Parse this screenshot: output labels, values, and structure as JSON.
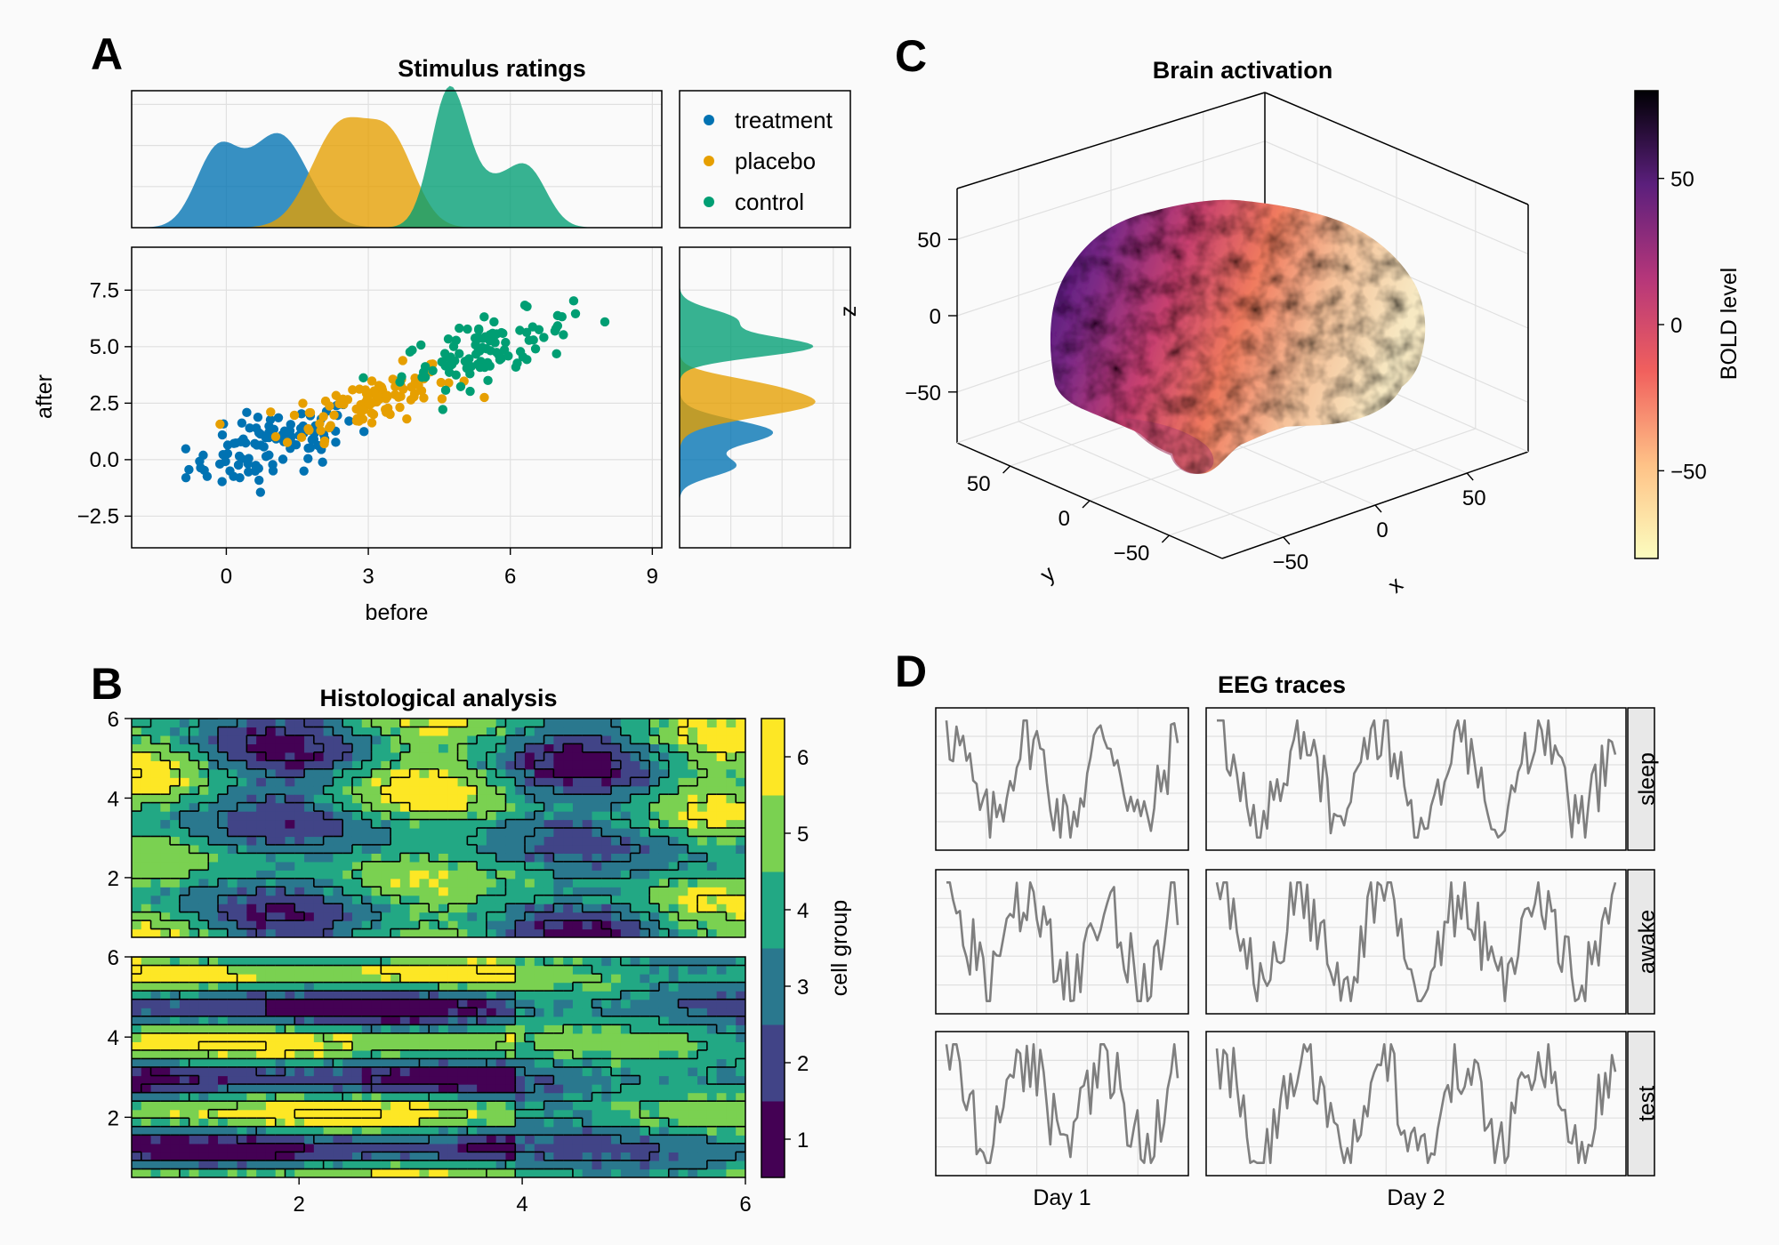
{
  "panel_labels": [
    "A",
    "B",
    "C",
    "D"
  ],
  "colors": {
    "treatment": "#0072b2",
    "placebo": "#e69f00",
    "control": "#009e73",
    "trace": "#7f7f7f"
  },
  "chart_data": [
    {
      "id": "A",
      "type": "scatter",
      "title": "Stimulus ratings",
      "xlabel": "before",
      "ylabel": "after",
      "xlim": [
        -2,
        9.2
      ],
      "ylim": [
        -3.9,
        9.4
      ],
      "xticks": [
        0,
        3,
        6,
        9
      ],
      "yticks": [
        -2.5,
        0.0,
        2.5,
        5.0,
        7.5
      ],
      "ytick_labels": [
        "−2.5",
        "0.0",
        "2.5",
        "5.0",
        "7.5"
      ],
      "grid": true,
      "legend_position": "top-right",
      "series": [
        {
          "name": "treatment",
          "color": "#0072b2",
          "center": [
            1.0,
            0.6
          ],
          "spread": [
            0.9,
            0.9
          ],
          "count": 100
        },
        {
          "name": "placebo",
          "color": "#e69f00",
          "center": [
            3.0,
            2.6
          ],
          "spread": [
            0.9,
            0.75
          ],
          "count": 100
        },
        {
          "name": "control",
          "color": "#009e73",
          "center": [
            5.5,
            4.9
          ],
          "spread": [
            0.9,
            0.8
          ],
          "count": 100
        }
      ],
      "marginal_x_density": [
        {
          "name": "treatment",
          "peaks": [
            [
              -0.2,
              0.45,
              0.55
            ],
            [
              1.1,
              0.62,
              0.7
            ]
          ]
        },
        {
          "name": "placebo",
          "peaks": [
            [
              2.4,
              0.6,
              0.75
            ],
            [
              3.5,
              0.5,
              0.6
            ]
          ]
        },
        {
          "name": "control",
          "peaks": [
            [
              4.7,
              0.38,
              1.0
            ],
            [
              6.4,
              0.4,
              0.38
            ],
            [
              5.6,
              0.5,
              0.3
            ]
          ]
        }
      ],
      "marginal_y_density": [
        {
          "name": "treatment",
          "peaks": [
            [
              -0.3,
              0.45,
              0.35
            ],
            [
              1.2,
              0.55,
              0.6
            ]
          ]
        },
        {
          "name": "placebo",
          "peaks": [
            [
              2.5,
              0.6,
              0.85
            ],
            [
              3.4,
              0.4,
              0.25
            ]
          ]
        },
        {
          "name": "control",
          "peaks": [
            [
              5.0,
              0.45,
              0.85
            ],
            [
              6.2,
              0.45,
              0.35
            ]
          ]
        }
      ]
    },
    {
      "id": "B",
      "type": "heatmap",
      "title": "Histological analysis",
      "xlim": [
        0.5,
        6.0
      ],
      "ylim": [
        0.5,
        6.0
      ],
      "xticks": [
        2,
        4,
        6
      ],
      "yticks": [
        2,
        4,
        6
      ],
      "colorbar_label": "cell group",
      "colorbar_levels": [
        1,
        2,
        3,
        4,
        5,
        6
      ],
      "colorbar_colors": [
        "#440154",
        "#414487",
        "#2a788e",
        "#22a884",
        "#7ad151",
        "#fde725"
      ]
    },
    {
      "id": "C",
      "type": "surface3d",
      "title": "Brain activation",
      "xlabel": "x",
      "ylabel": "y",
      "zlabel": "z",
      "xticks": [
        -50,
        0,
        50
      ],
      "yticks": [
        -50,
        0,
        50
      ],
      "zticks": [
        -50,
        0,
        50
      ],
      "tick_labels": [
        "−50",
        "0",
        "50"
      ],
      "colorbar_label": "BOLD level",
      "colorbar_ticks": [
        -50,
        0,
        50
      ],
      "colorbar_tick_labels": [
        "−50",
        "0",
        "50"
      ],
      "colorbar_range": [
        -80,
        80
      ]
    },
    {
      "id": "D",
      "type": "line",
      "title": "EEG traces",
      "columns": [
        "Day 1",
        "Day 2"
      ],
      "rows": [
        "sleep",
        "awake",
        "test"
      ],
      "line_color": "#7f7f7f",
      "points": {
        "Day 1": 70,
        "Day 2": 120
      }
    }
  ]
}
